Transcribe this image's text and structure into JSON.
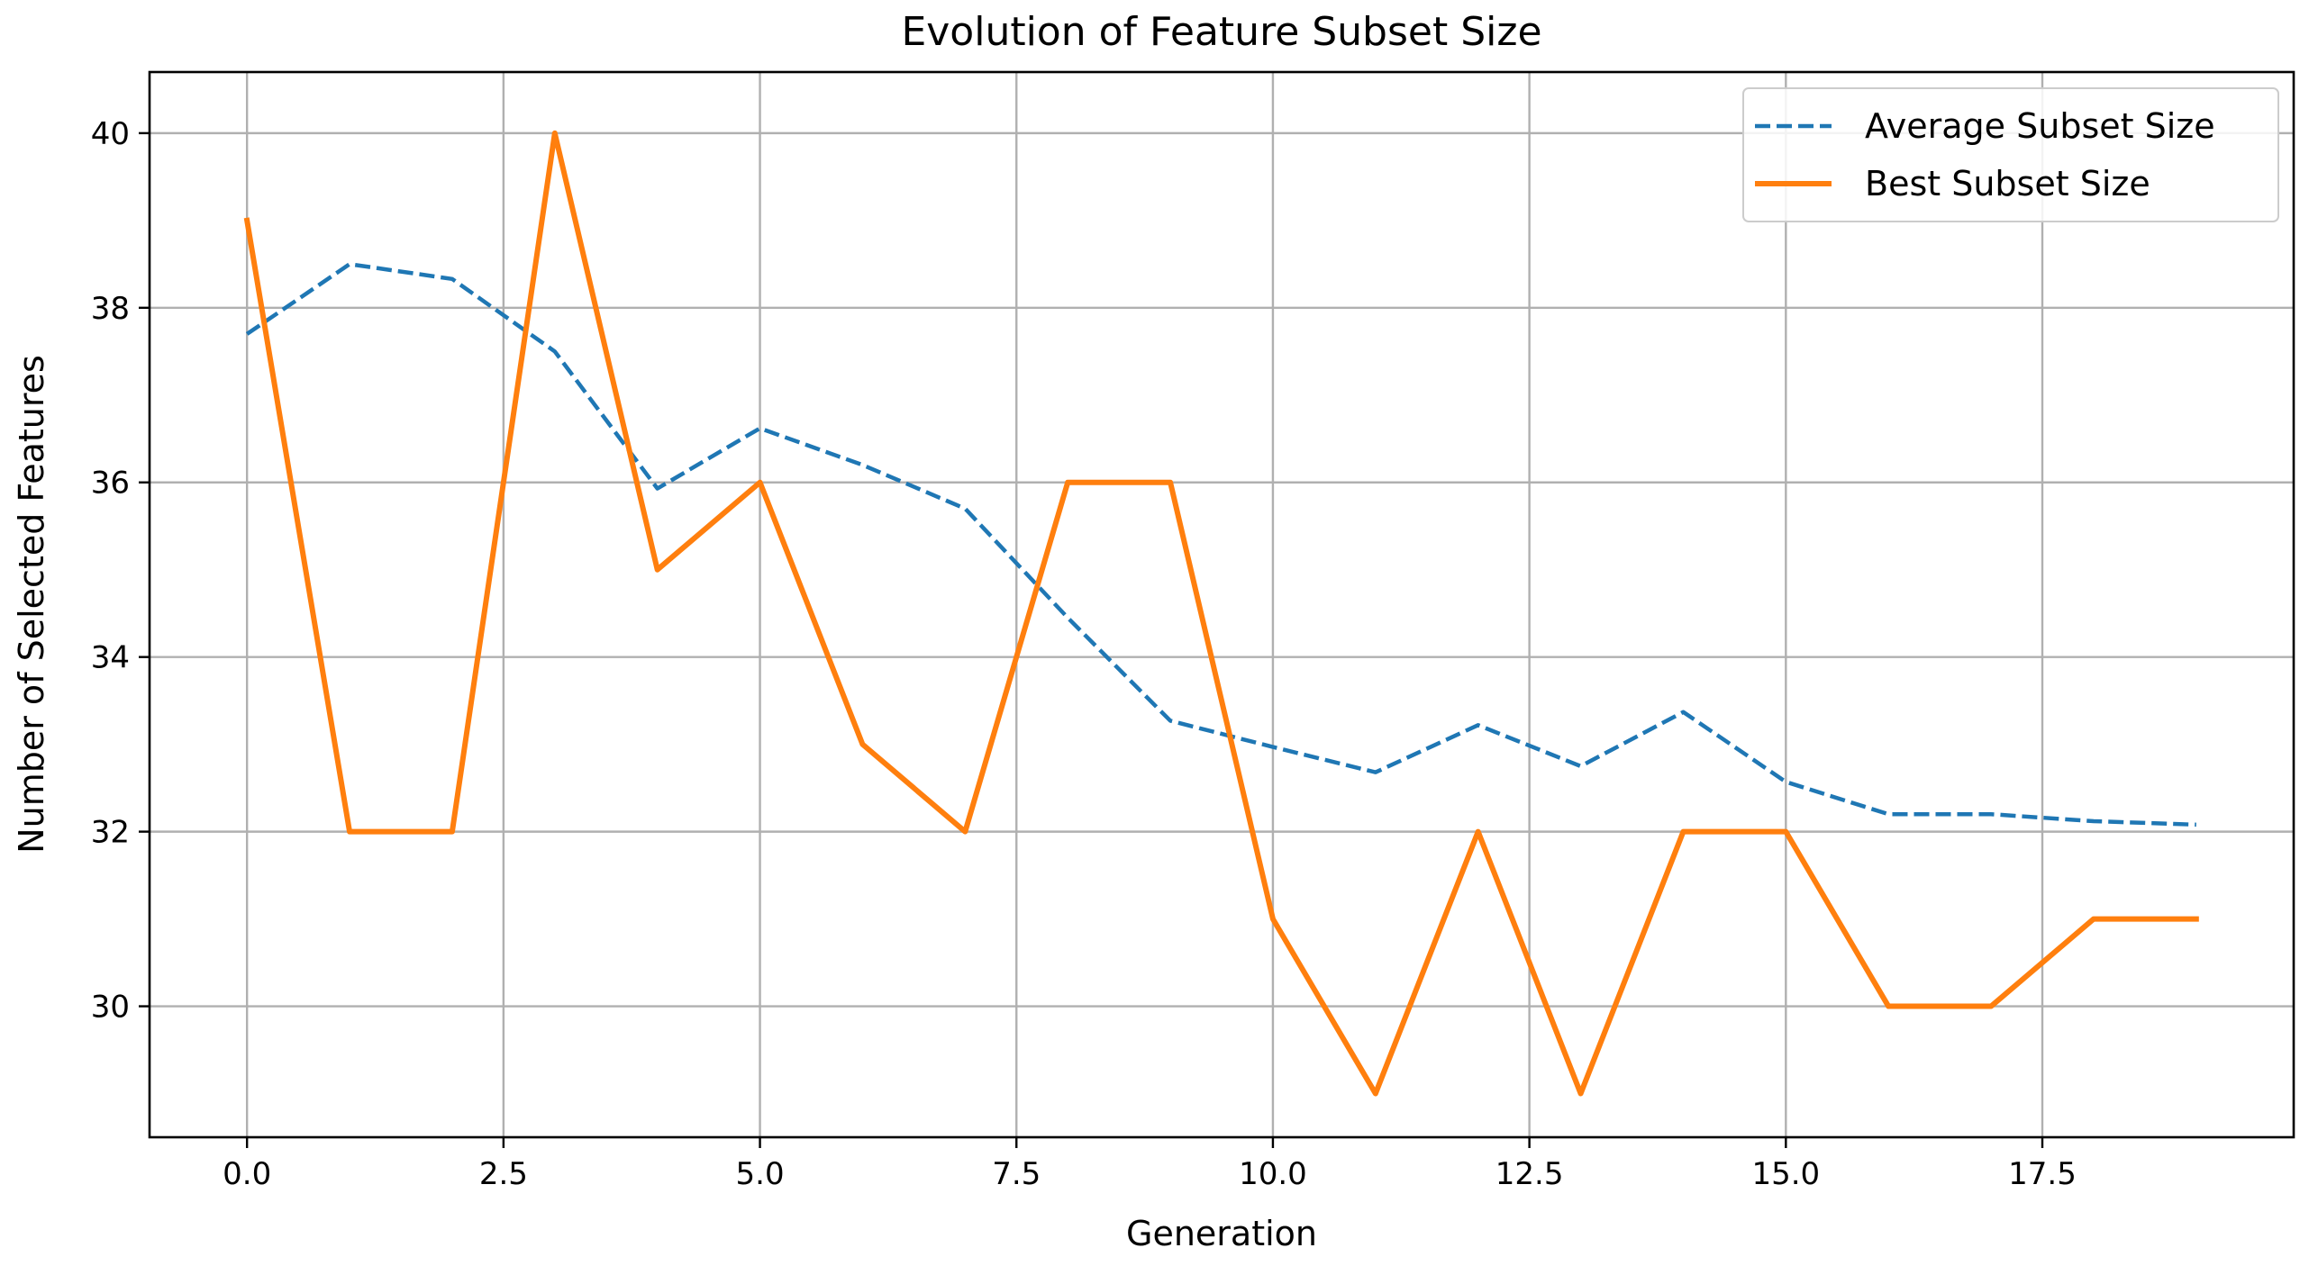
{
  "chart_data": {
    "type": "line",
    "title": "Evolution of Feature Subset Size",
    "xlabel": "Generation",
    "ylabel": "Number of Selected Features",
    "x": [
      0,
      1,
      2,
      3,
      4,
      5,
      6,
      7,
      8,
      9,
      10,
      11,
      12,
      13,
      14,
      15,
      16,
      17,
      18,
      19
    ],
    "xlim": [
      -0.95,
      19.95
    ],
    "ylim": [
      28.5,
      40.7
    ],
    "xticks": [
      0.0,
      2.5,
      5.0,
      7.5,
      10.0,
      12.5,
      15.0,
      17.5
    ],
    "xtick_labels": [
      "0.0",
      "2.5",
      "5.0",
      "7.5",
      "10.0",
      "12.5",
      "15.0",
      "17.5"
    ],
    "yticks": [
      30,
      32,
      34,
      36,
      38,
      40
    ],
    "ytick_labels": [
      "30",
      "32",
      "34",
      "36",
      "38",
      "40"
    ],
    "grid": true,
    "legend_position": "top-right",
    "series": [
      {
        "name": "Average Subset Size",
        "color": "#1f77b4",
        "style": "dashed",
        "values": [
          37.7,
          38.5,
          38.33,
          37.5,
          35.93,
          36.62,
          36.2,
          35.7,
          34.45,
          33.27,
          32.97,
          32.68,
          33.22,
          32.75,
          33.37,
          32.57,
          32.2,
          32.2,
          32.12,
          32.08
        ]
      },
      {
        "name": "Best Subset Size",
        "color": "#ff7f0e",
        "style": "solid",
        "values": [
          39,
          32,
          32,
          40,
          35,
          36,
          33,
          32,
          36,
          36,
          31,
          29,
          32,
          29,
          32,
          32,
          30,
          30,
          31,
          31
        ]
      }
    ]
  }
}
